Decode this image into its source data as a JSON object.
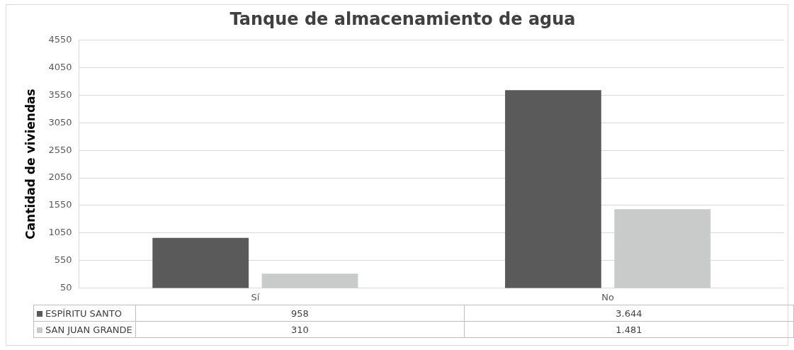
{
  "chart_data": {
    "type": "bar",
    "title": "Tanque de almacenamiento de agua",
    "ylabel": "Cantidad de viviendas",
    "categories": [
      "Sí",
      "No"
    ],
    "series": [
      {
        "name": "ESPÍRITU SANTO",
        "color": "#5a5a5a",
        "values": [
          958,
          3644
        ],
        "value_labels": [
          "958",
          "3.644"
        ]
      },
      {
        "name": "SAN JUAN GRANDE",
        "color": "#c9cbca",
        "values": [
          310,
          1481
        ],
        "value_labels": [
          "310",
          "1.481"
        ]
      }
    ],
    "ylim": [
      50,
      4550
    ],
    "yticks": [
      50,
      550,
      1050,
      1550,
      2050,
      2550,
      3050,
      3550,
      4050,
      4550
    ],
    "grid": "y",
    "legend": "bottom"
  }
}
